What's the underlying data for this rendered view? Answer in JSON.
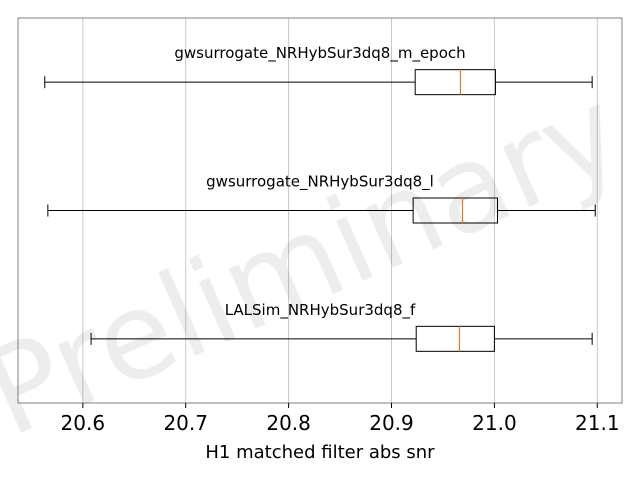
{
  "chart_data": {
    "type": "boxplot",
    "orientation": "horizontal",
    "xlabel": "H1 matched filter abs snr",
    "x_ticks": [
      "20.6",
      "20.7",
      "20.8",
      "20.9",
      "21.0",
      "21.1"
    ],
    "x_tick_values": [
      20.6,
      20.7,
      20.8,
      20.9,
      21.0,
      21.1
    ],
    "xlim": [
      20.537,
      21.124
    ],
    "grid": "vertical",
    "watermark": "Preliminary",
    "colors": {
      "box": "#000000",
      "median": "#e07b28",
      "grid": "#c8c8c8",
      "frame": "#808080"
    },
    "series": [
      {
        "name": "gwsurrogate_NRHybSur3dq8_m_epoch",
        "whisker_low": 20.563,
        "q1": 20.923,
        "median": 20.967,
        "q3": 21.001,
        "whisker_high": 21.095
      },
      {
        "name": "gwsurrogate_NRHybSur3dq8_l",
        "whisker_low": 20.566,
        "q1": 20.921,
        "median": 20.969,
        "q3": 21.003,
        "whisker_high": 21.098
      },
      {
        "name": "LALSim_NRHybSur3dq8_f",
        "whisker_low": 20.608,
        "q1": 20.924,
        "median": 20.966,
        "q3": 21.0,
        "whisker_high": 21.095
      }
    ]
  }
}
